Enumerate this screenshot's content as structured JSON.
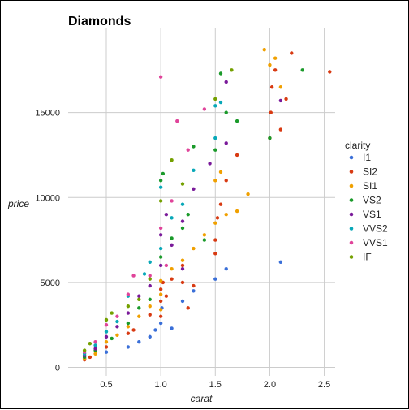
{
  "chart_data": {
    "type": "scatter",
    "title": "Diamonds",
    "xlabel": "carat",
    "ylabel": "price",
    "xlim": [
      0.15,
      2.6
    ],
    "ylim": [
      -500,
      20000
    ],
    "x_ticks": [
      0.5,
      1.0,
      1.5,
      2.0,
      2.5
    ],
    "x_tick_labels": [
      "0.5",
      "1.0",
      "1.5",
      "2.0",
      "2.5"
    ],
    "y_ticks": [
      0,
      5000,
      10000,
      15000
    ],
    "y_tick_labels": [
      "0",
      "5000",
      "10000",
      "15000"
    ],
    "grid": true,
    "legend": {
      "title": "clarity",
      "placement": "right",
      "entries": [
        "I1",
        "SI2",
        "SI1",
        "VS2",
        "VS1",
        "VVS2",
        "VVS1",
        "IF"
      ]
    },
    "series": [
      {
        "name": "I1",
        "color": "#3a6fd8",
        "points": [
          [
            0.3,
            520
          ],
          [
            0.5,
            900
          ],
          [
            0.7,
            1200
          ],
          [
            0.9,
            1800
          ],
          [
            0.95,
            2200
          ],
          [
            1.0,
            2600
          ],
          [
            1.01,
            3500
          ],
          [
            1.2,
            3900
          ],
          [
            1.3,
            4500
          ],
          [
            1.5,
            5200
          ],
          [
            1.6,
            5800
          ],
          [
            2.1,
            6200
          ],
          [
            1.1,
            2300
          ],
          [
            0.8,
            1500
          ]
        ]
      },
      {
        "name": "SI2",
        "color": "#d83a12",
        "points": [
          [
            0.3,
            450
          ],
          [
            0.35,
            600
          ],
          [
            0.5,
            1200
          ],
          [
            0.7,
            2000
          ],
          [
            0.9,
            3100
          ],
          [
            1.0,
            3900
          ],
          [
            1.0,
            4600
          ],
          [
            1.02,
            5000
          ],
          [
            1.05,
            4200
          ],
          [
            1.1,
            5200
          ],
          [
            1.2,
            6000
          ],
          [
            1.2,
            5000
          ],
          [
            1.3,
            4800
          ],
          [
            1.5,
            6700
          ],
          [
            1.5,
            7500
          ],
          [
            1.52,
            8800
          ],
          [
            1.55,
            9600
          ],
          [
            1.6,
            11000
          ],
          [
            1.7,
            12500
          ],
          [
            2.0,
            13500
          ],
          [
            2.01,
            15000
          ],
          [
            2.02,
            16500
          ],
          [
            2.05,
            17500
          ],
          [
            2.1,
            14000
          ],
          [
            2.15,
            15800
          ],
          [
            2.2,
            18500
          ],
          [
            2.55,
            17400
          ],
          [
            1.25,
            3500
          ],
          [
            0.75,
            2200
          ],
          [
            1.0,
            3000
          ]
        ]
      },
      {
        "name": "SI1",
        "color": "#f0a000",
        "points": [
          [
            0.3,
            500
          ],
          [
            0.4,
            800
          ],
          [
            0.5,
            1500
          ],
          [
            0.7,
            2400
          ],
          [
            0.8,
            3000
          ],
          [
            0.9,
            3600
          ],
          [
            1.0,
            4300
          ],
          [
            1.0,
            5100
          ],
          [
            1.1,
            5800
          ],
          [
            1.2,
            6300
          ],
          [
            1.3,
            7000
          ],
          [
            1.4,
            7800
          ],
          [
            1.5,
            8500
          ],
          [
            1.5,
            11000
          ],
          [
            1.55,
            11500
          ],
          [
            1.7,
            9200
          ],
          [
            1.8,
            10200
          ],
          [
            1.95,
            18700
          ],
          [
            2.0,
            17800
          ],
          [
            2.05,
            18200
          ],
          [
            2.1,
            16500
          ],
          [
            1.6,
            9000
          ],
          [
            1.0,
            3400
          ],
          [
            0.6,
            1900
          ]
        ]
      },
      {
        "name": "VS2",
        "color": "#1a9a2a",
        "points": [
          [
            0.3,
            600
          ],
          [
            0.4,
            1000
          ],
          [
            0.55,
            1700
          ],
          [
            0.7,
            2600
          ],
          [
            0.9,
            4000
          ],
          [
            1.0,
            6500
          ],
          [
            1.0,
            11000
          ],
          [
            1.02,
            11400
          ],
          [
            1.1,
            7600
          ],
          [
            1.2,
            8200
          ],
          [
            1.3,
            13000
          ],
          [
            1.5,
            12800
          ],
          [
            1.55,
            17300
          ],
          [
            1.6,
            15000
          ],
          [
            1.7,
            14500
          ],
          [
            2.0,
            13500
          ],
          [
            2.3,
            17500
          ],
          [
            1.25,
            9000
          ],
          [
            1.4,
            7500
          ],
          [
            0.8,
            3500
          ]
        ]
      },
      {
        "name": "VS1",
        "color": "#7a1a9a",
        "points": [
          [
            0.3,
            700
          ],
          [
            0.4,
            1100
          ],
          [
            0.5,
            1800
          ],
          [
            0.6,
            2400
          ],
          [
            0.7,
            3200
          ],
          [
            0.9,
            4800
          ],
          [
            1.0,
            6000
          ],
          [
            1.05,
            9000
          ],
          [
            1.1,
            7200
          ],
          [
            1.2,
            8600
          ],
          [
            1.3,
            10500
          ],
          [
            1.45,
            12000
          ],
          [
            1.6,
            13200
          ],
          [
            1.6,
            16800
          ],
          [
            2.1,
            15700
          ],
          [
            1.2,
            5800
          ],
          [
            1.0,
            7800
          ],
          [
            0.8,
            4200
          ]
        ]
      },
      {
        "name": "VVS2",
        "color": "#08a8b8",
        "points": [
          [
            0.3,
            800
          ],
          [
            0.4,
            1300
          ],
          [
            0.5,
            2100
          ],
          [
            0.6,
            2700
          ],
          [
            0.7,
            4200
          ],
          [
            0.85,
            5500
          ],
          [
            1.0,
            7000
          ],
          [
            1.0,
            10600
          ],
          [
            1.1,
            8800
          ],
          [
            1.3,
            11600
          ],
          [
            1.5,
            15400
          ],
          [
            1.55,
            15600
          ],
          [
            1.5,
            13500
          ],
          [
            1.2,
            9600
          ],
          [
            0.9,
            6200
          ]
        ]
      },
      {
        "name": "VVS1",
        "color": "#e0449a",
        "points": [
          [
            0.3,
            900
          ],
          [
            0.4,
            1500
          ],
          [
            0.5,
            2500
          ],
          [
            0.6,
            3000
          ],
          [
            0.7,
            4300
          ],
          [
            0.9,
            5400
          ],
          [
            1.0,
            8200
          ],
          [
            1.1,
            9800
          ],
          [
            1.15,
            14500
          ],
          [
            1.25,
            12800
          ],
          [
            1.4,
            15200
          ],
          [
            1.0,
            17100
          ],
          [
            0.75,
            5400
          ],
          [
            1.05,
            6000
          ]
        ]
      },
      {
        "name": "IF",
        "color": "#74a000",
        "points": [
          [
            0.3,
            1000
          ],
          [
            0.35,
            1400
          ],
          [
            0.5,
            2800
          ],
          [
            0.55,
            3200
          ],
          [
            0.7,
            3600
          ],
          [
            0.9,
            5200
          ],
          [
            1.0,
            9800
          ],
          [
            1.1,
            12200
          ],
          [
            1.5,
            15800
          ],
          [
            1.65,
            17500
          ],
          [
            1.2,
            10800
          ],
          [
            0.8,
            4000
          ]
        ]
      }
    ]
  }
}
